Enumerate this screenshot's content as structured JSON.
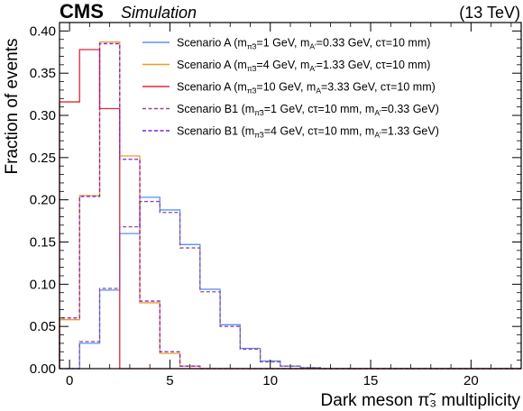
{
  "header": {
    "experiment": "CMS",
    "label": "Simulation",
    "energy": "(13 TeV)"
  },
  "chart_data": {
    "type": "step",
    "xlabel": "Dark meson π̃₃ multiplicity",
    "ylabel": "Fraction of events",
    "xlim": [
      -0.5,
      22.5
    ],
    "ylim": [
      0,
      0.41
    ],
    "xticks": [
      0,
      5,
      10,
      15,
      20
    ],
    "yticks": [
      0.0,
      0.05,
      0.1,
      0.15,
      0.2,
      0.25,
      0.3,
      0.35,
      0.4
    ],
    "bins": [
      0,
      1,
      2,
      3,
      4,
      5,
      6,
      7,
      8,
      9,
      10,
      11,
      12,
      13,
      14,
      15,
      16,
      17,
      18,
      19,
      20,
      21,
      22
    ],
    "grid": false,
    "legend_position": "top-right",
    "series": [
      {
        "name": "Scenario A (m_π̃3=1 GeV, m_A′=0.33 GeV, cτ=10 mm)",
        "legend_label": "Scenario A (m  =1 GeV, m  =0.33 GeV, cτ=10 mm)",
        "color": "#5790fc",
        "style": "solid",
        "values": [
          0.0,
          0.03,
          0.093,
          0.16,
          0.203,
          0.188,
          0.147,
          0.094,
          0.052,
          0.024,
          0.009,
          0.003,
          0.001,
          0,
          0,
          0,
          0,
          0,
          0,
          0,
          0,
          0,
          0
        ]
      },
      {
        "name": "Scenario A (m_π̃3=4 GeV, m_A′=1.33 GeV, cτ=10 mm)",
        "color": "#f89c20",
        "style": "solid",
        "values": [
          0.058,
          0.205,
          0.387,
          0.252,
          0.078,
          0.018,
          0.003,
          0,
          0,
          0,
          0,
          0,
          0,
          0,
          0,
          0,
          0,
          0,
          0,
          0,
          0,
          0,
          0
        ]
      },
      {
        "name": "Scenario A (m_π̃3=10 GeV, m_A=3.33 GeV, cτ=10 mm)",
        "color": "#e42536",
        "style": "solid",
        "values": [
          0.316,
          0.378,
          0.308,
          0,
          0,
          0,
          0,
          0,
          0,
          0,
          0,
          0,
          0,
          0,
          0,
          0,
          0,
          0,
          0,
          0,
          0,
          0,
          0
        ]
      },
      {
        "name": "Scenario B1 (m_π̃3=1 GeV, cτ=10 mm, m_A′=0.33 GeV)",
        "color": "#964a8b",
        "style": "dashed",
        "values": [
          0.0,
          0.032,
          0.095,
          0.168,
          0.198,
          0.185,
          0.143,
          0.091,
          0.05,
          0.023,
          0.008,
          0.003,
          0.001,
          0,
          0,
          0,
          0,
          0,
          0,
          0,
          0,
          0,
          0
        ]
      },
      {
        "name": "Scenario B1 (m_π̃3=4 GeV, cτ=10 mm, m_A′=1.33 GeV)",
        "color": "#7a21dd",
        "style": "dashed",
        "values": [
          0.06,
          0.204,
          0.385,
          0.248,
          0.08,
          0.02,
          0.003,
          0,
          0,
          0,
          0,
          0,
          0,
          0,
          0,
          0,
          0,
          0,
          0,
          0,
          0,
          0,
          0
        ]
      }
    ],
    "legend_labels": [
      {
        "prefix": "Scenario A (m",
        "sub1": "π̃3",
        "mid1": "=1 GeV, m",
        "sub2": "A′",
        "tail": "=0.33 GeV, cτ=10 mm)"
      },
      {
        "prefix": "Scenario A (m",
        "sub1": "π̃3",
        "mid1": "=4 GeV, m",
        "sub2": "A′",
        "tail": "=1.33 GeV, cτ=10 mm)"
      },
      {
        "prefix": "Scenario A (m",
        "sub1": "π̃3",
        "mid1": "=10 GeV, m",
        "sub2": "A",
        "tail": "=3.33 GeV, cτ=10 mm)"
      },
      {
        "prefix": "Scenario B1 (m",
        "sub1": "π̃3",
        "mid1": "=1 GeV, cτ=10 mm, m",
        "sub2": "A′",
        "tail": "=0.33 GeV)"
      },
      {
        "prefix": "Scenario B1 (m",
        "sub1": "π̃3",
        "mid1": "=4 GeV, cτ=10 mm, m",
        "sub2": "A′",
        "tail": "=1.33 GeV)"
      }
    ]
  }
}
